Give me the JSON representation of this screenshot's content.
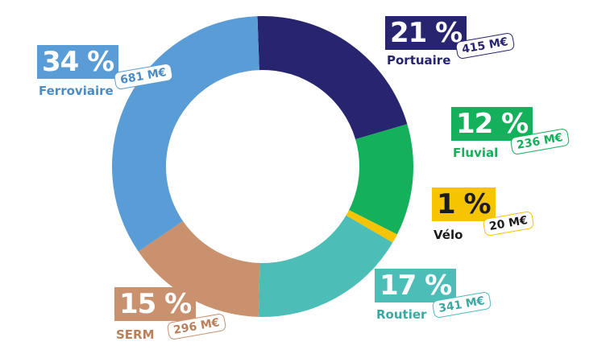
{
  "chart_data": {
    "type": "pie",
    "variant": "donut",
    "categories": [
      "Portuaire",
      "Fluvial",
      "Vélo",
      "Routier",
      "SERM",
      "Ferroviaire"
    ],
    "percent_labels": [
      "21 %",
      "12 %",
      "1 %",
      "17 %",
      "15 %",
      "34 %"
    ],
    "values": [
      21,
      12,
      1,
      17,
      15,
      34
    ],
    "amount_labels": [
      "415 M€",
      "236 M€",
      "20 M€",
      "341 M€",
      "296 M€",
      "681 M€"
    ],
    "amounts": [
      415,
      236,
      20,
      341,
      296,
      681
    ],
    "unit": "M€",
    "colors": [
      "#272470",
      "#15b05b",
      "#f6c400",
      "#4dbdb7",
      "#c9916d",
      "#5a9cd6"
    ],
    "legend": "callouts around the ring"
  }
}
